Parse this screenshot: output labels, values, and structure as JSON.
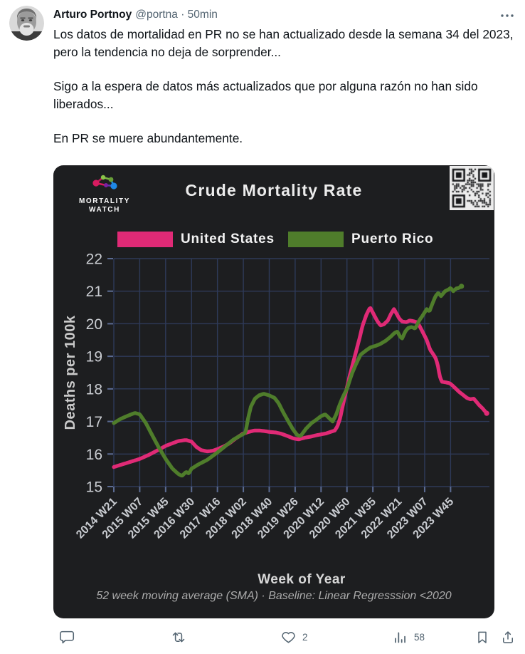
{
  "tweet": {
    "author": "Arturo Portnoy",
    "handle_time": "@portna · 50min",
    "paragraphs": [
      "Los datos de mortalidad en PR no se han actualizado desde la semana 34 del 2023, pero la tendencia no deja de sorprender...",
      "Sigo a la espera de datos más actualizados que por alguna razón no han sido liberados...",
      "En PR se muere abundantemente."
    ]
  },
  "actions": {
    "like_count": "2",
    "view_count": "58"
  },
  "chart": {
    "brand_line1": "MORTALITY",
    "brand_line2": "WATCH",
    "colors": {
      "card_bg": "#1d1e20",
      "grid": "#2e3a59",
      "tick_stub": "#5b6b92",
      "tick_text": "#c9ccd1",
      "title_text": "#ececec",
      "us_pink": "#e02a76",
      "pr_green": "#4f7d2b"
    }
  },
  "chart_data": {
    "type": "line",
    "title": "Crude Mortality Rate",
    "xlabel": "Week of Year",
    "ylabel": "Deaths per 100k",
    "caption": "52 week moving average (SMA) · Baseline: Linear Regresssion <2020",
    "ylim": [
      15,
      22
    ],
    "xlim_weeks": [
      0,
      551
    ],
    "grid": true,
    "legend_position": "top",
    "x_unit": "weeks since 2014 W21",
    "x_ticks": [
      {
        "label": "2014 W21",
        "week": 0
      },
      {
        "label": "2015 W07",
        "week": 38
      },
      {
        "label": "2015 W45",
        "week": 76
      },
      {
        "label": "2016 W30",
        "week": 114
      },
      {
        "label": "2017 W16",
        "week": 152
      },
      {
        "label": "2018 W02",
        "week": 190
      },
      {
        "label": "2018 W40",
        "week": 228
      },
      {
        "label": "2019 W26",
        "week": 266
      },
      {
        "label": "2020 W12",
        "week": 304
      },
      {
        "label": "2020 W50",
        "week": 342
      },
      {
        "label": "2021 W35",
        "week": 380
      },
      {
        "label": "2022 W21",
        "week": 418
      },
      {
        "label": "2023 W07",
        "week": 456
      },
      {
        "label": "2023 W45",
        "week": 494
      }
    ],
    "series": [
      {
        "name": "United States",
        "color": "#e02a76",
        "points": [
          [
            0,
            15.6
          ],
          [
            12,
            15.68
          ],
          [
            26,
            15.77
          ],
          [
            38,
            15.85
          ],
          [
            51,
            15.97
          ],
          [
            63,
            16.1
          ],
          [
            76,
            16.25
          ],
          [
            86,
            16.33
          ],
          [
            95,
            16.4
          ],
          [
            106,
            16.43
          ],
          [
            114,
            16.38
          ],
          [
            121,
            16.22
          ],
          [
            128,
            16.12
          ],
          [
            137,
            16.08
          ],
          [
            145,
            16.1
          ],
          [
            152,
            16.15
          ],
          [
            160,
            16.22
          ],
          [
            169,
            16.32
          ],
          [
            177,
            16.45
          ],
          [
            184,
            16.55
          ],
          [
            189,
            16.62
          ],
          [
            198,
            16.68
          ],
          [
            206,
            16.72
          ],
          [
            214,
            16.72
          ],
          [
            222,
            16.7
          ],
          [
            228,
            16.68
          ],
          [
            238,
            16.66
          ],
          [
            246,
            16.62
          ],
          [
            255,
            16.55
          ],
          [
            263,
            16.48
          ],
          [
            271,
            16.45
          ],
          [
            280,
            16.5
          ],
          [
            288,
            16.53
          ],
          [
            296,
            16.57
          ],
          [
            303,
            16.6
          ],
          [
            311,
            16.63
          ],
          [
            318,
            16.68
          ],
          [
            324,
            16.72
          ],
          [
            328,
            16.85
          ],
          [
            332,
            17.1
          ],
          [
            336,
            17.5
          ],
          [
            341,
            17.95
          ],
          [
            346,
            18.4
          ],
          [
            351,
            18.8
          ],
          [
            356,
            19.2
          ],
          [
            361,
            19.6
          ],
          [
            365,
            19.95
          ],
          [
            371,
            20.3
          ],
          [
            376,
            20.5
          ],
          [
            381,
            20.3
          ],
          [
            386,
            20.1
          ],
          [
            391,
            19.95
          ],
          [
            396,
            19.98
          ],
          [
            402,
            20.1
          ],
          [
            407,
            20.32
          ],
          [
            411,
            20.45
          ],
          [
            415,
            20.3
          ],
          [
            419,
            20.15
          ],
          [
            423,
            20.07
          ],
          [
            429,
            20.05
          ],
          [
            434,
            20.1
          ],
          [
            439,
            20.08
          ],
          [
            444,
            20.05
          ],
          [
            448,
            19.95
          ],
          [
            453,
            19.75
          ],
          [
            459,
            19.5
          ],
          [
            464,
            19.2
          ],
          [
            468,
            19.08
          ],
          [
            472,
            18.95
          ],
          [
            475,
            18.75
          ],
          [
            478,
            18.4
          ],
          [
            481,
            18.22
          ],
          [
            487,
            18.2
          ],
          [
            493,
            18.17
          ],
          [
            497,
            18.1
          ],
          [
            502,
            18.0
          ],
          [
            507,
            17.9
          ],
          [
            512,
            17.82
          ],
          [
            518,
            17.72
          ],
          [
            523,
            17.68
          ],
          [
            528,
            17.7
          ],
          [
            532,
            17.6
          ],
          [
            536,
            17.5
          ],
          [
            541,
            17.4
          ],
          [
            545,
            17.3
          ],
          [
            547,
            17.25
          ]
        ]
      },
      {
        "name": "Puerto Rico",
        "color": "#4f7d2b",
        "points": [
          [
            0,
            16.95
          ],
          [
            10,
            17.08
          ],
          [
            21,
            17.18
          ],
          [
            31,
            17.26
          ],
          [
            38,
            17.22
          ],
          [
            47,
            16.95
          ],
          [
            57,
            16.55
          ],
          [
            66,
            16.2
          ],
          [
            76,
            15.85
          ],
          [
            86,
            15.55
          ],
          [
            95,
            15.38
          ],
          [
            100,
            15.33
          ],
          [
            106,
            15.45
          ],
          [
            110,
            15.4
          ],
          [
            114,
            15.55
          ],
          [
            124,
            15.68
          ],
          [
            137,
            15.82
          ],
          [
            152,
            16.05
          ],
          [
            164,
            16.25
          ],
          [
            176,
            16.45
          ],
          [
            187,
            16.58
          ],
          [
            193,
            16.65
          ],
          [
            197,
            17.1
          ],
          [
            201,
            17.45
          ],
          [
            207,
            17.7
          ],
          [
            213,
            17.8
          ],
          [
            220,
            17.85
          ],
          [
            228,
            17.8
          ],
          [
            236,
            17.72
          ],
          [
            242,
            17.55
          ],
          [
            248,
            17.3
          ],
          [
            256,
            17.0
          ],
          [
            263,
            16.75
          ],
          [
            269,
            16.58
          ],
          [
            274,
            16.55
          ],
          [
            282,
            16.78
          ],
          [
            290,
            16.95
          ],
          [
            297,
            17.05
          ],
          [
            303,
            17.15
          ],
          [
            310,
            17.22
          ],
          [
            315,
            17.12
          ],
          [
            321,
            17.0
          ],
          [
            326,
            17.2
          ],
          [
            331,
            17.5
          ],
          [
            336,
            17.75
          ],
          [
            342,
            18.0
          ],
          [
            349,
            18.45
          ],
          [
            355,
            18.75
          ],
          [
            362,
            19.05
          ],
          [
            370,
            19.18
          ],
          [
            377,
            19.28
          ],
          [
            384,
            19.32
          ],
          [
            391,
            19.38
          ],
          [
            399,
            19.48
          ],
          [
            406,
            19.6
          ],
          [
            412,
            19.72
          ],
          [
            416,
            19.76
          ],
          [
            420,
            19.6
          ],
          [
            423,
            19.55
          ],
          [
            428,
            19.78
          ],
          [
            432,
            19.87
          ],
          [
            437,
            19.9
          ],
          [
            442,
            19.85
          ],
          [
            448,
            20.1
          ],
          [
            453,
            20.25
          ],
          [
            459,
            20.45
          ],
          [
            463,
            20.38
          ],
          [
            468,
            20.65
          ],
          [
            472,
            20.85
          ],
          [
            476,
            20.95
          ],
          [
            480,
            20.85
          ],
          [
            486,
            21.0
          ],
          [
            491,
            21.05
          ],
          [
            494,
            21.1
          ],
          [
            498,
            21.0
          ],
          [
            502,
            21.08
          ],
          [
            506,
            21.1
          ],
          [
            510,
            21.15
          ]
        ]
      }
    ]
  }
}
